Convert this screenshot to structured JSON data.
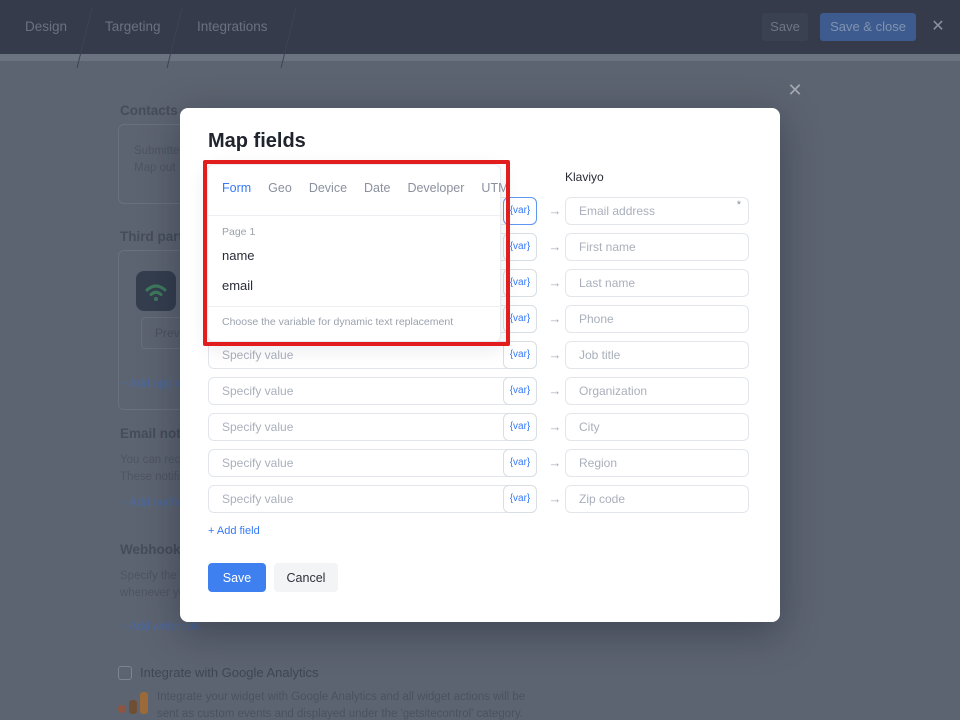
{
  "topbar": {
    "tabs": [
      {
        "label": "Design"
      },
      {
        "label": "Targeting"
      },
      {
        "label": "Integrations"
      }
    ],
    "save_label": "Save",
    "save_close_label": "Save & close",
    "close_icon": "✕"
  },
  "page": {
    "contacts": {
      "heading": "Contacts",
      "line1": "Submitte",
      "line2": "Map out"
    },
    "third_party": {
      "heading": "Third party",
      "preview_label": "Previe",
      "add_link": "+ Add applic"
    },
    "email_notifications": {
      "heading": "Email notifi",
      "line1": "You can rece",
      "line2": "These notifi",
      "add_link": "+ Add notific"
    },
    "webhooks": {
      "heading": "Webhooks",
      "line1": "Specify the U",
      "line2": "whenever yo",
      "add_link": "+ Add webhook"
    },
    "google_analytics": {
      "checkbox_checked": false,
      "checkbox_label": "Integrate with Google Analytics",
      "desc_line1": "Integrate your widget with Google Analytics and all widget actions will be",
      "desc_line2": "sent as custom events and displayed under the 'getsitecontrol' category."
    }
  },
  "overlay": {
    "close_icon": "✕"
  },
  "modal": {
    "title": "Map fields",
    "provider_label": "Klaviyo",
    "source_placeholder": "Specify value",
    "var_label": "{var}",
    "arrow_icon": "→",
    "required_marker": "*",
    "dropdown": {
      "tabs": [
        "Form",
        "Geo",
        "Device",
        "Date",
        "Developer",
        "UTM"
      ],
      "active_tab": "Form",
      "group_label": "Page 1",
      "options": [
        "name",
        "email"
      ],
      "helper_text": "Choose the variable for dynamic text replacement"
    },
    "rows": [
      {
        "target_placeholder": "Email address",
        "required": true,
        "var_focused": true
      },
      {
        "target_placeholder": "First name"
      },
      {
        "target_placeholder": "Last name"
      },
      {
        "target_placeholder": "Phone"
      },
      {
        "target_placeholder": "Job title"
      },
      {
        "target_placeholder": "Organization"
      },
      {
        "target_placeholder": "City"
      },
      {
        "target_placeholder": "Region"
      },
      {
        "target_placeholder": "Zip code"
      }
    ],
    "add_field_label": "+ Add field",
    "save_label": "Save",
    "cancel_label": "Cancel"
  },
  "colors": {
    "accent_blue": "#3579f6",
    "highlight_red": "#e11d1d",
    "save_button_blue": "#3f80f1",
    "topbar_bg": "#353b4a",
    "overlay_bg": "#5d6471"
  }
}
